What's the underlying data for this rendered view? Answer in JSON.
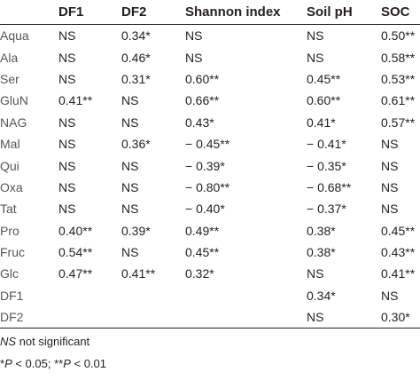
{
  "table": {
    "headers": [
      "",
      "DF1",
      "DF2",
      "Shannon index",
      "Soil pH",
      "SOC"
    ],
    "rows": [
      [
        "Aqua",
        "NS",
        "0.34*",
        "NS",
        "NS",
        "0.50**"
      ],
      [
        "Ala",
        "NS",
        "0.46*",
        "NS",
        "NS",
        "0.58**"
      ],
      [
        "Ser",
        "NS",
        "0.31*",
        "0.60**",
        "0.45**",
        "0.53**"
      ],
      [
        "GluN",
        "0.41**",
        "NS",
        "0.66**",
        "0.60**",
        "0.61**"
      ],
      [
        "NAG",
        "NS",
        "NS",
        "0.43*",
        "0.41*",
        "0.57**"
      ],
      [
        "Mal",
        "NS",
        "0.36*",
        "− 0.45**",
        "− 0.41*",
        "NS"
      ],
      [
        "Qui",
        "NS",
        "NS",
        "− 0.39*",
        "− 0.35*",
        "NS"
      ],
      [
        "Oxa",
        "NS",
        "NS",
        "− 0.80**",
        "− 0.68**",
        "NS"
      ],
      [
        "Tat",
        "NS",
        "NS",
        "− 0.40*",
        "− 0.37*",
        "NS"
      ],
      [
        "Pro",
        "0.40**",
        "0.39*",
        "0.49**",
        "0.38*",
        "0.45**"
      ],
      [
        "Fruc",
        "0.54**",
        "NS",
        "0.45**",
        "0.38*",
        "0.43**"
      ],
      [
        "Glc",
        "0.47**",
        "0.41**",
        "0.32*",
        "NS",
        "0.41**"
      ],
      [
        "DF1",
        "",
        "",
        "",
        "0.34*",
        "NS"
      ],
      [
        "DF2",
        "",
        "",
        "",
        "NS",
        "0.30*"
      ]
    ]
  },
  "footnotes": {
    "ns_abbrev": "NS",
    "ns_text": " not significant",
    "sig_p1": "P",
    "sig_mid1": " < 0.05; **",
    "sig_p2": "P",
    "sig_mid2": " < 0.01",
    "sig_star": "*"
  }
}
